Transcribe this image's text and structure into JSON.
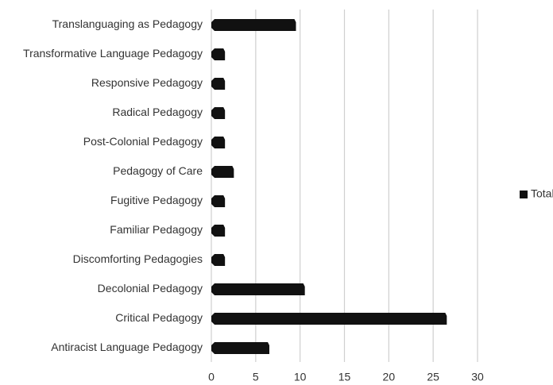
{
  "chart_data": {
    "type": "bar",
    "orientation": "horizontal",
    "categories": [
      "Translanguaging as Pedagogy",
      "Transformative Language Pedagogy",
      "Responsive Pedagogy",
      "Radical Pedagogy",
      "Post-Colonial Pedagogy",
      "Pedagogy of Care",
      "Fugitive Pedagogy",
      "Familiar Pedagogy",
      "Discomforting Pedagogies",
      "Decolonial Pedagogy",
      "Critical Pedagogy",
      "Antiracist Language Pedagogy"
    ],
    "series": [
      {
        "name": "Total",
        "color": "#111111",
        "values": [
          9,
          1,
          1,
          1,
          1,
          2,
          1,
          1,
          1,
          10,
          26,
          6
        ]
      }
    ],
    "xlim": [
      0,
      30
    ],
    "xticks": [
      0,
      5,
      10,
      15,
      20,
      25,
      30
    ],
    "grid": true,
    "legend": "right"
  }
}
